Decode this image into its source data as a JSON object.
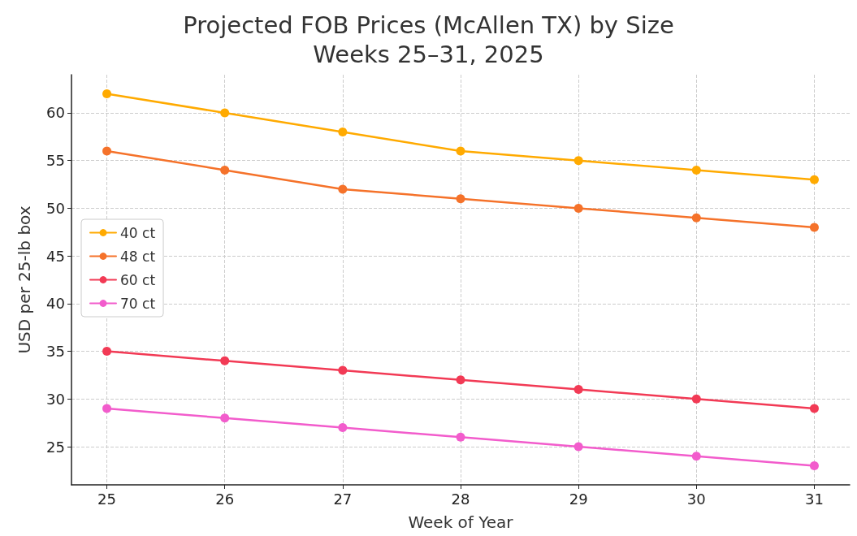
{
  "chart_data": {
    "type": "line",
    "title": "Projected FOB Prices (McAllen TX) by Size\nWeeks 25–31, 2025",
    "xlabel": "Week of Year",
    "ylabel": "USD per 25-lb box",
    "x": [
      25,
      26,
      27,
      28,
      29,
      30,
      31
    ],
    "series": [
      {
        "name": "40 ct",
        "color": "#ffaa00",
        "values": [
          62,
          60,
          58,
          56,
          55,
          54,
          53
        ]
      },
      {
        "name": "48 ct",
        "color": "#f5722a",
        "values": [
          56,
          54,
          52,
          51,
          50,
          49,
          48
        ]
      },
      {
        "name": "60 ct",
        "color": "#f23a55",
        "values": [
          35,
          34,
          33,
          32,
          31,
          30,
          29
        ]
      },
      {
        "name": "70 ct",
        "color": "#f25ccc",
        "values": [
          29,
          28,
          27,
          26,
          25,
          24,
          23
        ]
      }
    ],
    "xlim": [
      24.7,
      31.3
    ],
    "xticks": [
      25,
      26,
      27,
      28,
      29,
      30,
      31
    ],
    "ylim": [
      21,
      64
    ],
    "yticks": [
      25,
      30,
      35,
      40,
      45,
      50,
      55,
      60
    ],
    "grid": true,
    "legend": "left",
    "marker": "circle",
    "line_style": "solid"
  }
}
